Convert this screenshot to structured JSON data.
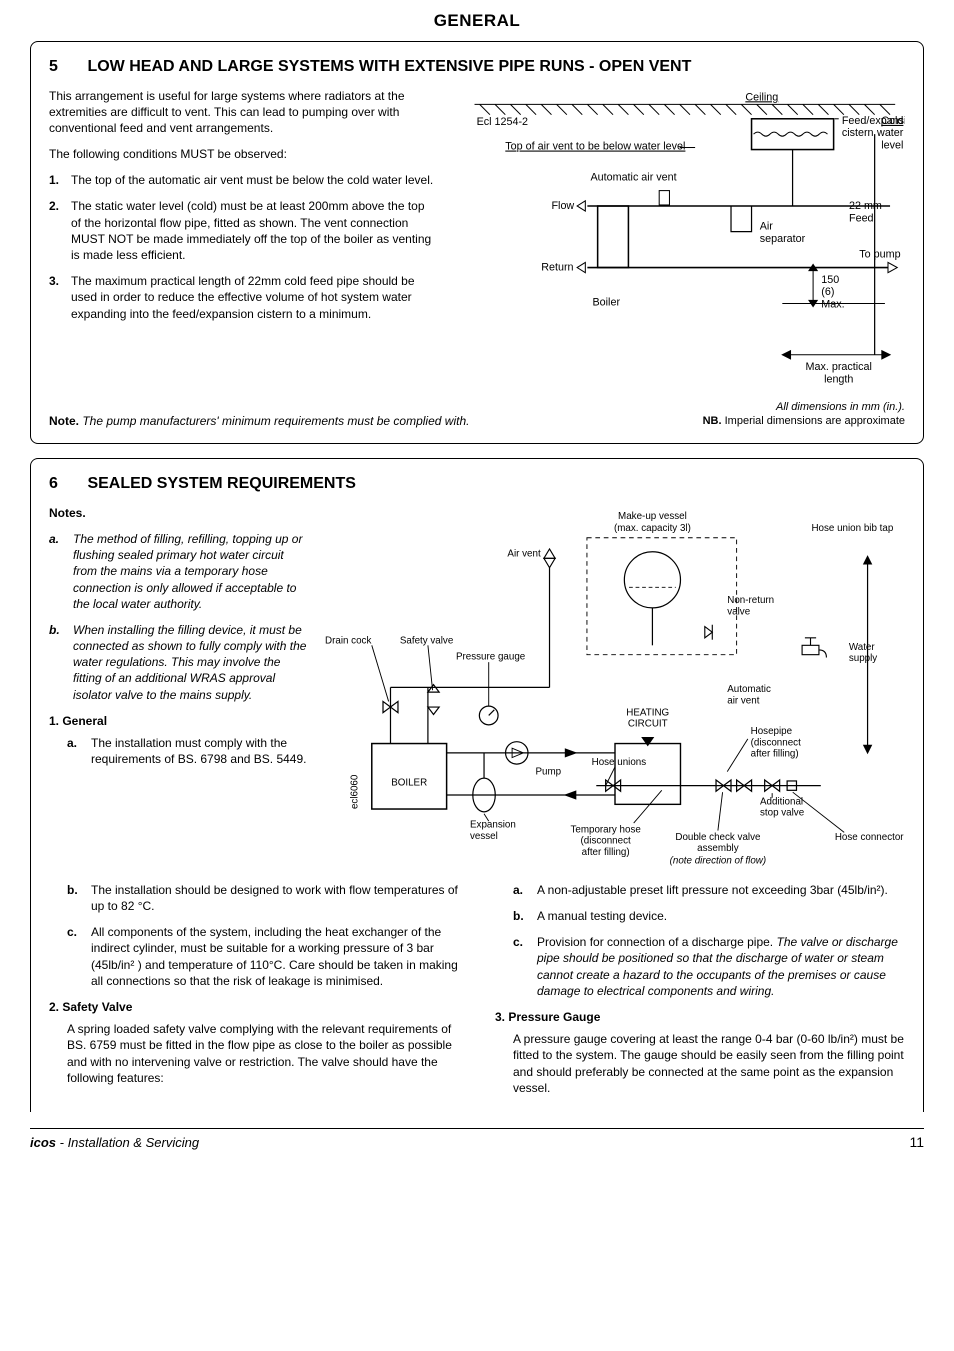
{
  "page_title": "GENERAL",
  "footer": {
    "brand": "icos",
    "subtitle": " - Installation & Servicing",
    "page_number": "11"
  },
  "section5": {
    "num": "5",
    "title": "LOW HEAD AND LARGE SYSTEMS WITH EXTENSIVE PIPE RUNS - OPEN VENT",
    "intro": "This arrangement is useful for large systems where radiators at the extremities are difficult to vent.  This can lead to pumping over with conventional feed and vent arrangements.",
    "must": "The following conditions MUST be observed:",
    "items": [
      {
        "n": "1.",
        "t": "The top of the automatic air vent must be below the cold water level."
      },
      {
        "n": "2.",
        "t": "The static water level (cold) must be at least 200mm above the top of the horizontal flow pipe, fitted as shown. The vent connection MUST NOT be made immediately off the top of the boiler as venting is made less efficient."
      },
      {
        "n": "3.",
        "t": "The maximum practical length of 22mm cold feed pipe should be used in order to reduce the effective volume of hot system water expanding into the feed/expansion cistern to a minimum."
      }
    ],
    "note_label": "Note.",
    "note": "The pump manufacturers' minimum requirements must be complied with.",
    "fig_caption": "All dimensions in mm (in.).",
    "fig_nb_label": "NB.",
    "fig_nb": "Imperial dimensions are approximate",
    "diagram": {
      "ecl": "Ecl 1254-2",
      "ceiling": "Ceiling",
      "top_air_vent": "Top of air vent to be below water level",
      "auto_air_vent": "Automatic air vent",
      "feed_exp": "Feed/expansion",
      "cistern": "cistern",
      "cold_water": "Cold water level",
      "flow": "Flow",
      "return": "Return",
      "boiler": "Boiler",
      "air_sep": "Air separator",
      "feed_22": "22 mm Feed",
      "to_pump": "To pump",
      "dim_150": "150",
      "dim_6": "(6)",
      "max": "Max.",
      "max_practical": "Max. practical length"
    }
  },
  "section6": {
    "num": "6",
    "title": "SEALED SYSTEM REQUIREMENTS",
    "notes_label": "Notes.",
    "notes": [
      {
        "l": "a.",
        "t": "The method of filling, refilling, topping up or flushing sealed primary hot water circuit from the mains via a temporary hose connection is only allowed if acceptable to the local water authority."
      },
      {
        "l": "b.",
        "t": "When installing the filling device, it must be connected as shown to fully comply with the water regulations.  This may involve the fitting of an additional WRAS approval isolator valve to the mains supply."
      }
    ],
    "general_head": "1.  General",
    "general": [
      {
        "l": "a.",
        "t": "The installation must comply with the requirements of BS. 6798 and BS. 5449."
      },
      {
        "l": "b.",
        "t_html": "The installation should be designed to work with flow temperatures of up to 82 °C."
      },
      {
        "l": "c.",
        "t_html": "All components of the system, including the heat exchanger of the indirect cylinder, must be suitable for a working pressure of 3 bar (45lb/in² ) and temperature of 110°C. Care should be taken in making all connections so that the risk of leakage is minimised."
      }
    ],
    "safety_head": "2.  Safety Valve",
    "safety_intro": "A spring loaded safety valve complying with the relevant requirements of BS. 6759 must be fitted in the flow pipe as close to the boiler as possible and with no intervening valve or restriction. The valve should have the following features:",
    "safety_items": [
      {
        "l": "a.",
        "t_html": "A non-adjustable preset lift pressure not exceeding 3bar (45lb/in²)."
      },
      {
        "l": "b.",
        "t": "A manual testing device."
      },
      {
        "l": "c.",
        "t_html": "Provision for connection of a discharge pipe. <span class=\"ital\">The valve or discharge pipe should be positioned so that the discharge of water or steam cannot create a hazard to the occupants of the premises or cause damage to electrical components and wiring.</span>"
      }
    ],
    "gauge_head": "3.  Pressure Gauge",
    "gauge_text_html": "A pressure gauge covering at least the range 0-4 bar (0-60 lb/in²) must be fitted to the system.  The gauge should be easily seen from the filling point and should preferably be connected at the same point as the expansion vessel.",
    "diagram": {
      "drain_cock": "Drain cock",
      "safety_valve": "Safety valve",
      "pressure_gauge": "Pressure gauge",
      "air_vent": "Air vent",
      "boiler": "BOILER",
      "pump": "Pump",
      "expansion": "Expansion vessel",
      "ecl": "ecl6060",
      "makeup": "Make-up vessel",
      "max_cap": "(max. capacity 3l)",
      "hose_bib": "Hose union bib tap",
      "nr_valve": "Non-return valve",
      "water_supply": "Water supply",
      "auto_av": "Automatic air vent",
      "heating_circuit": "HEATING CIRCUIT",
      "hosepipe": "Hosepipe (disconnect after filling)",
      "hose_unions": "Hose unions",
      "add_stop": "Additional stop valve",
      "temp_hose": "Temporary hose (disconnect after filling)",
      "dbl_check": "Double check valve assembly",
      "note_dir": "(note direction of flow)",
      "hose_conn": "Hose connector"
    }
  }
}
